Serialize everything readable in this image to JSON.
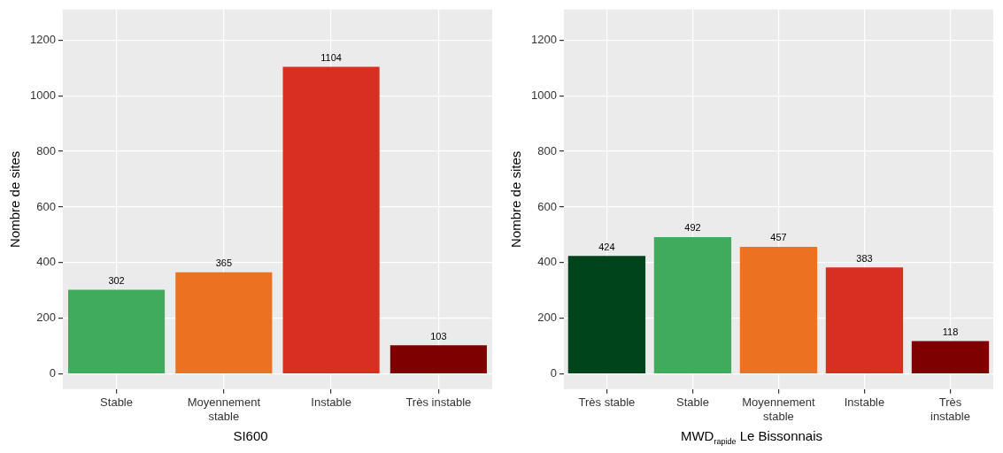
{
  "chart_data": [
    {
      "type": "bar",
      "xlabel": "SI600",
      "ylabel": "Nombre de sites",
      "categories": [
        "Stable",
        "Moyennement stable",
        "Instable",
        "Très instable"
      ],
      "values": [
        302,
        365,
        1104,
        103
      ],
      "colors": [
        "#41ab5d",
        "#ec7120",
        "#d73023",
        "#7f0000"
      ],
      "ylim": [
        -55,
        1310
      ],
      "yticks": [
        0,
        200,
        400,
        600,
        800,
        1000,
        1200
      ],
      "grid": true,
      "data_labels": true
    },
    {
      "type": "bar",
      "xlabel": "MWD$_{rapide}$ Le Bissonnais",
      "ylabel": "Nombre de sites",
      "categories": [
        "Très stable",
        "Stable",
        "Moyennement stable",
        "Instable",
        "Très instable"
      ],
      "values": [
        424,
        492,
        457,
        383,
        118
      ],
      "colors": [
        "#00441b",
        "#41ab5d",
        "#ec7120",
        "#d73023",
        "#7f0000"
      ],
      "ylim": [
        -55,
        1310
      ],
      "yticks": [
        0,
        200,
        400,
        600,
        800,
        1000,
        1200
      ],
      "grid": true,
      "data_labels": true
    }
  ]
}
